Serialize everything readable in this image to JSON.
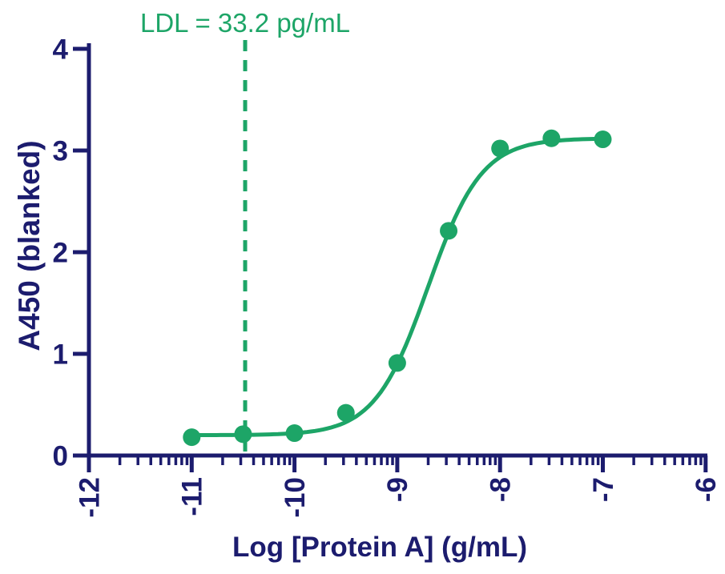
{
  "chart_data": {
    "type": "scatter",
    "annotation_text": "LDL = 33.2 pg/mL",
    "xlabel": "Log [Protein A] (g/mL)",
    "ylabel": "A450 (blanked)",
    "xlim": [
      -12,
      -6
    ],
    "ylim": [
      0,
      4
    ],
    "x_ticks": [
      -12,
      -11,
      -10,
      -9,
      -8,
      -7,
      -6
    ],
    "x_tick_labels": [
      "-12",
      "-11",
      "-10",
      "-9",
      "-8",
      "-7",
      "-6"
    ],
    "x_minor_ticks": "log-decade subdivisions 2-9 between each major tick",
    "y_ticks": [
      0,
      1,
      2,
      3,
      4
    ],
    "y_tick_labels": [
      "0",
      "1",
      "2",
      "3",
      "4"
    ],
    "grid": false,
    "legend": null,
    "points": {
      "x": [
        -11,
        -10.5,
        -10,
        -9.5,
        -9,
        -8.5,
        -8,
        -7.5,
        -7
      ],
      "y": [
        0.18,
        0.21,
        0.22,
        0.42,
        0.91,
        2.21,
        3.02,
        3.12,
        3.11
      ]
    },
    "fit_curve": {
      "model": "4PL",
      "bottom": 0.2,
      "top": 3.12,
      "logEC50": -8.7,
      "hill": 1.67,
      "x_start": -11,
      "x_end": -7
    },
    "ldl_line_x": -10.48,
    "colors": {
      "series_green": "#1da567",
      "axis_navy": "#1c1c6e",
      "background": "#ffffff"
    }
  }
}
